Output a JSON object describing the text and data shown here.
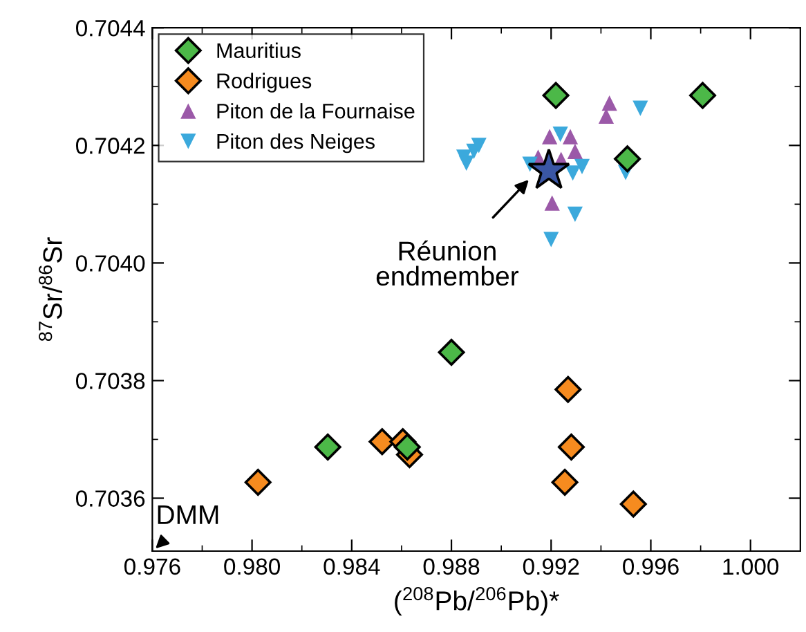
{
  "chart_data": {
    "type": "scatter",
    "xlabel": "($^{208}$Pb/$^{206}$Pb)*",
    "ylabel": "$^{87}$Sr/$^{86}$Sr",
    "xlim": [
      0.976,
      1.002
    ],
    "ylim": [
      0.70351,
      0.7044
    ],
    "xticks": [
      0.976,
      {
        "value": 0.978,
        "label": null
      },
      {
        "value": 0.98,
        "label": "0.980"
      },
      {
        "value": 0.982,
        "label": null
      },
      0.984,
      {
        "value": 0.986,
        "label": null
      },
      0.988,
      {
        "value": 0.99,
        "label": null
      },
      0.992,
      {
        "value": 0.994,
        "label": null
      },
      0.996,
      {
        "value": 0.998,
        "label": null
      },
      {
        "value": 1.0,
        "label": "1.000"
      }
    ],
    "yticks": [
      0.7036,
      {
        "value": 0.7037,
        "label": null
      },
      0.7038,
      {
        "value": 0.7039,
        "label": null
      },
      {
        "value": 0.704,
        "label": "0.7040"
      },
      {
        "value": 0.7041,
        "label": null
      },
      0.7042,
      {
        "value": 0.7043,
        "label": null
      },
      0.7044
    ],
    "grid": false,
    "legend": "top left",
    "series": [
      {
        "name": "Mauritius",
        "color": "#4cb848",
        "marker": "diamond",
        "x": [
          0.98304,
          0.98623,
          0.988,
          0.99219,
          0.99506,
          0.99808
        ],
        "values": [
          0.703687,
          0.703687,
          0.703848,
          0.704285,
          0.704177,
          0.704285
        ]
      },
      {
        "name": "Rodrigues",
        "color": "#f68b1f",
        "marker": "diamond",
        "x": [
          0.98024,
          0.98522,
          0.98605,
          0.98632,
          0.99268,
          0.99281,
          0.99255,
          0.9953
        ],
        "values": [
          0.703627,
          0.703696,
          0.703696,
          0.703674,
          0.703785,
          0.703687,
          0.703627,
          0.70359
        ]
      },
      {
        "name": "Piton de la Fournaise",
        "color": "#9b59a8",
        "marker": "triangle",
        "x": [
          0.99434,
          0.99421,
          0.99194,
          0.99277,
          0.99296,
          0.99148,
          0.9924,
          0.99204
        ],
        "values": [
          0.704272,
          0.70425,
          0.704215,
          0.704215,
          0.70419,
          0.70418,
          0.704176,
          0.704102
        ]
      },
      {
        "name": "Piton des Neiges",
        "color": "#3ba9dc",
        "marker": "triangle_down",
        "x": [
          0.99558,
          0.99237,
          0.99115,
          0.99324,
          0.99287,
          0.99499,
          0.99296,
          0.992,
          0.9889,
          0.9891,
          0.9886,
          0.9885
        ],
        "values": [
          0.704263,
          0.704219,
          0.704168,
          0.704164,
          0.704153,
          0.704154,
          0.704083,
          0.70404,
          0.70419,
          0.7042,
          0.70417,
          0.70418
        ]
      },
      {
        "color": "#3a56a5",
        "marker": "star",
        "x": [
          0.99191
        ],
        "values": [
          0.704157
        ]
      }
    ],
    "annotations": [
      "Réunion\nendmember",
      "DMM"
    ]
  }
}
